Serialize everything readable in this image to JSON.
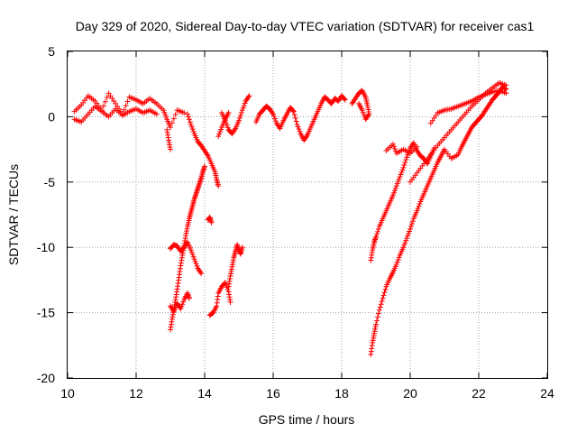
{
  "chart_data": {
    "type": "scatter",
    "title": "Day 329 of 2020, Sidereal Day-to-day VTEC variation (SDTVAR) for receiver cas1",
    "xlabel": "GPS time / hours",
    "ylabel": "SDTVAR / TECUs",
    "xlim": [
      10,
      24
    ],
    "ylim": [
      -20,
      5
    ],
    "xticks": [
      10,
      12,
      14,
      16,
      18,
      20,
      22,
      24
    ],
    "yticks": [
      -20,
      -15,
      -10,
      -5,
      0,
      5
    ],
    "grid": true,
    "marker": "+",
    "color": "#ff0000",
    "segments": [
      {
        "name": "main-early",
        "points": [
          [
            10.2,
            0.4
          ],
          [
            10.4,
            0.9
          ],
          [
            10.6,
            1.6
          ],
          [
            10.8,
            1.2
          ],
          [
            11.0,
            0.5
          ],
          [
            11.2,
            1.8
          ],
          [
            11.4,
            1.0
          ],
          [
            11.6,
            0.2
          ],
          [
            11.8,
            1.5
          ],
          [
            12.0,
            1.3
          ],
          [
            12.2,
            1.0
          ],
          [
            12.4,
            1.4
          ],
          [
            12.6,
            1.0
          ],
          [
            12.8,
            0.5
          ],
          [
            12.9,
            -0.2
          ],
          [
            13.0,
            -0.8
          ],
          [
            13.2,
            0.5
          ],
          [
            13.4,
            0.3
          ]
        ]
      },
      {
        "name": "main-early-low",
        "points": [
          [
            10.2,
            -0.2
          ],
          [
            10.4,
            -0.4
          ],
          [
            10.6,
            0.2
          ],
          [
            10.8,
            0.8
          ],
          [
            11.0,
            0.4
          ],
          [
            11.2,
            0.0
          ],
          [
            11.4,
            0.6
          ],
          [
            11.6,
            0.1
          ],
          [
            11.8,
            0.4
          ],
          [
            12.0,
            0.6
          ],
          [
            12.2,
            0.3
          ],
          [
            12.4,
            0.5
          ],
          [
            12.6,
            0.2
          ]
        ]
      },
      {
        "name": "dip-a",
        "points": [
          [
            12.9,
            -1.0
          ],
          [
            12.95,
            -1.8
          ],
          [
            13.0,
            -2.5
          ]
        ]
      },
      {
        "name": "dip-b",
        "points": [
          [
            13.0,
            -16.3
          ],
          [
            13.05,
            -15.5
          ],
          [
            13.1,
            -14.8
          ],
          [
            13.15,
            -14.0
          ],
          [
            13.2,
            -13.2
          ],
          [
            13.25,
            -12.3
          ],
          [
            13.3,
            -11.4
          ],
          [
            13.35,
            -10.6
          ],
          [
            13.4,
            -9.9
          ],
          [
            13.45,
            -9.1
          ],
          [
            13.5,
            -8.4
          ],
          [
            13.55,
            -7.8
          ],
          [
            13.6,
            -7.3
          ],
          [
            13.65,
            -6.8
          ],
          [
            13.7,
            -6.3
          ],
          [
            13.75,
            -5.9
          ],
          [
            13.8,
            -5.5
          ],
          [
            13.85,
            -5.1
          ],
          [
            13.9,
            -4.7
          ],
          [
            13.95,
            -4.2
          ],
          [
            14.0,
            -3.8
          ]
        ]
      },
      {
        "name": "dip-c",
        "points": [
          [
            13.0,
            -10.1
          ],
          [
            13.1,
            -9.8
          ],
          [
            13.2,
            -9.9
          ],
          [
            13.3,
            -10.3
          ],
          [
            13.4,
            -10.0
          ],
          [
            13.5,
            -9.6
          ],
          [
            13.6,
            -10.2
          ],
          [
            13.7,
            -10.9
          ],
          [
            13.8,
            -11.6
          ],
          [
            13.9,
            -12.0
          ]
        ]
      },
      {
        "name": "dip-d",
        "points": [
          [
            13.0,
            -14.5
          ],
          [
            13.1,
            -14.9
          ],
          [
            13.2,
            -14.3
          ],
          [
            13.3,
            -14.7
          ],
          [
            13.4,
            -14.0
          ],
          [
            13.5,
            -13.5
          ],
          [
            13.55,
            -13.9
          ]
        ]
      },
      {
        "name": "dip-e",
        "points": [
          [
            13.5,
            0.2
          ],
          [
            13.6,
            -0.6
          ],
          [
            13.7,
            -1.3
          ],
          [
            13.8,
            -1.9
          ],
          [
            13.9,
            -2.2
          ],
          [
            14.0,
            -2.6
          ],
          [
            14.1,
            -3.0
          ],
          [
            14.2,
            -3.6
          ],
          [
            14.3,
            -4.2
          ],
          [
            14.35,
            -4.8
          ],
          [
            14.4,
            -5.3
          ]
        ]
      },
      {
        "name": "dip-f",
        "points": [
          [
            14.1,
            -7.9
          ],
          [
            14.15,
            -7.7
          ],
          [
            14.2,
            -8.1
          ]
        ]
      },
      {
        "name": "dip-g",
        "points": [
          [
            14.15,
            -15.2
          ],
          [
            14.25,
            -15.0
          ],
          [
            14.35,
            -14.5
          ],
          [
            14.4,
            -13.5
          ],
          [
            14.5,
            -13.0
          ],
          [
            14.6,
            -12.7
          ],
          [
            14.7,
            -13.4
          ],
          [
            14.75,
            -14.2
          ]
        ]
      },
      {
        "name": "dip-h",
        "points": [
          [
            14.7,
            -13.0
          ],
          [
            14.75,
            -12.2
          ],
          [
            14.8,
            -11.5
          ],
          [
            14.85,
            -10.8
          ],
          [
            14.9,
            -10.3
          ],
          [
            14.95,
            -9.8
          ],
          [
            15.0,
            -10.2
          ],
          [
            15.05,
            -10.5
          ],
          [
            15.1,
            -10.0
          ]
        ]
      },
      {
        "name": "mid-1",
        "points": [
          [
            14.5,
            0.3
          ],
          [
            14.6,
            -0.3
          ],
          [
            14.7,
            -1.0
          ],
          [
            14.8,
            -1.3
          ],
          [
            14.9,
            -0.9
          ],
          [
            15.0,
            -0.3
          ],
          [
            15.1,
            0.5
          ],
          [
            15.2,
            1.2
          ],
          [
            15.3,
            1.6
          ]
        ]
      },
      {
        "name": "mid-2",
        "points": [
          [
            14.4,
            -1.5
          ],
          [
            14.5,
            -0.8
          ],
          [
            14.6,
            -0.2
          ],
          [
            14.7,
            0.3
          ]
        ]
      },
      {
        "name": "mid-3",
        "points": [
          [
            15.5,
            -0.4
          ],
          [
            15.6,
            0.2
          ],
          [
            15.7,
            0.5
          ],
          [
            15.8,
            0.8
          ],
          [
            15.9,
            0.6
          ],
          [
            16.0,
            0.2
          ],
          [
            16.1,
            -0.5
          ],
          [
            16.2,
            -0.9
          ],
          [
            16.3,
            -0.3
          ],
          [
            16.4,
            0.2
          ],
          [
            16.5,
            0.7
          ],
          [
            16.6,
            0.4
          ],
          [
            16.7,
            -0.6
          ],
          [
            16.8,
            -1.3
          ],
          [
            16.9,
            -1.8
          ],
          [
            17.0,
            -1.4
          ],
          [
            17.1,
            -0.8
          ],
          [
            17.2,
            -0.2
          ],
          [
            17.3,
            0.4
          ],
          [
            17.4,
            1.0
          ],
          [
            17.5,
            1.5
          ],
          [
            17.6,
            1.3
          ],
          [
            17.7,
            1.0
          ],
          [
            17.8,
            1.4
          ],
          [
            17.9,
            1.2
          ],
          [
            18.0,
            1.6
          ],
          [
            18.1,
            1.3
          ]
        ]
      },
      {
        "name": "late-cluster",
        "points": [
          [
            18.3,
            1.0
          ],
          [
            18.4,
            1.4
          ],
          [
            18.5,
            1.8
          ],
          [
            18.6,
            2.0
          ],
          [
            18.7,
            1.5
          ],
          [
            18.75,
            0.9
          ],
          [
            18.8,
            0.2
          ],
          [
            18.7,
            -0.2
          ],
          [
            18.6,
            0.5
          ],
          [
            18.5,
            1.0
          ]
        ]
      },
      {
        "name": "recover-upper",
        "points": [
          [
            18.85,
            -11.0
          ],
          [
            18.9,
            -10.2
          ],
          [
            18.95,
            -9.6
          ],
          [
            19.0,
            -9.2
          ],
          [
            19.1,
            -8.4
          ],
          [
            19.2,
            -7.8
          ],
          [
            19.3,
            -7.2
          ],
          [
            19.4,
            -6.6
          ],
          [
            19.5,
            -6.0
          ],
          [
            19.6,
            -5.3
          ],
          [
            19.7,
            -4.6
          ],
          [
            19.8,
            -3.9
          ],
          [
            19.9,
            -3.1
          ],
          [
            20.0,
            -2.4
          ],
          [
            20.1,
            -2.0
          ],
          [
            20.2,
            -2.6
          ],
          [
            20.3,
            -3.0
          ],
          [
            20.4,
            -3.2
          ],
          [
            20.5,
            -3.6
          ],
          [
            20.6,
            -3.0
          ],
          [
            20.7,
            -2.4
          ]
        ]
      },
      {
        "name": "recover-upper-2",
        "points": [
          [
            19.3,
            -2.6
          ],
          [
            19.5,
            -2.1
          ],
          [
            19.6,
            -2.8
          ],
          [
            19.8,
            -2.5
          ],
          [
            20.0,
            -2.8
          ],
          [
            20.2,
            -2.3
          ]
        ]
      },
      {
        "name": "recover-mid",
        "points": [
          [
            20.0,
            -5.0
          ],
          [
            20.2,
            -4.3
          ],
          [
            20.4,
            -3.6
          ],
          [
            20.6,
            -2.9
          ],
          [
            20.8,
            -2.2
          ],
          [
            21.0,
            -1.6
          ],
          [
            21.2,
            -1.0
          ],
          [
            21.4,
            -0.4
          ],
          [
            21.6,
            0.2
          ],
          [
            21.8,
            0.8
          ],
          [
            22.0,
            1.3
          ],
          [
            22.2,
            1.8
          ],
          [
            22.4,
            2.2
          ],
          [
            22.6,
            2.6
          ],
          [
            22.8,
            2.4
          ]
        ]
      },
      {
        "name": "recover-top",
        "points": [
          [
            20.6,
            -0.5
          ],
          [
            20.8,
            0.3
          ],
          [
            21.0,
            0.5
          ],
          [
            21.2,
            0.6
          ],
          [
            21.4,
            0.8
          ],
          [
            21.6,
            1.0
          ],
          [
            21.8,
            1.2
          ],
          [
            22.0,
            1.5
          ],
          [
            22.2,
            1.7
          ],
          [
            22.4,
            1.9
          ],
          [
            22.6,
            2.0
          ],
          [
            22.8,
            1.8
          ]
        ]
      },
      {
        "name": "recover-lower",
        "points": [
          [
            18.85,
            -18.2
          ],
          [
            18.9,
            -17.3
          ],
          [
            18.95,
            -16.6
          ],
          [
            19.0,
            -15.9
          ],
          [
            19.1,
            -14.8
          ],
          [
            19.2,
            -13.9
          ],
          [
            19.3,
            -13.0
          ],
          [
            19.4,
            -12.4
          ],
          [
            19.5,
            -11.9
          ],
          [
            19.6,
            -11.3
          ],
          [
            19.7,
            -10.6
          ],
          [
            19.8,
            -10.0
          ],
          [
            19.9,
            -9.3
          ],
          [
            20.0,
            -8.6
          ],
          [
            20.1,
            -7.8
          ],
          [
            20.2,
            -7.2
          ],
          [
            20.3,
            -6.5
          ],
          [
            20.4,
            -5.9
          ],
          [
            20.5,
            -5.3
          ],
          [
            20.6,
            -4.7
          ],
          [
            20.7,
            -4.1
          ],
          [
            20.8,
            -3.5
          ],
          [
            20.9,
            -3.0
          ],
          [
            21.0,
            -2.5
          ],
          [
            21.2,
            -3.2
          ],
          [
            21.4,
            -2.9
          ],
          [
            21.5,
            -2.3
          ],
          [
            21.6,
            -1.8
          ],
          [
            21.7,
            -1.3
          ],
          [
            21.8,
            -0.8
          ],
          [
            21.9,
            -0.5
          ],
          [
            22.0,
            -0.2
          ],
          [
            22.1,
            0.1
          ],
          [
            22.2,
            0.5
          ],
          [
            22.3,
            0.9
          ],
          [
            22.4,
            1.3
          ],
          [
            22.5,
            1.6
          ],
          [
            22.6,
            1.9
          ],
          [
            22.7,
            2.3
          ],
          [
            22.8,
            2.1
          ]
        ]
      }
    ]
  }
}
